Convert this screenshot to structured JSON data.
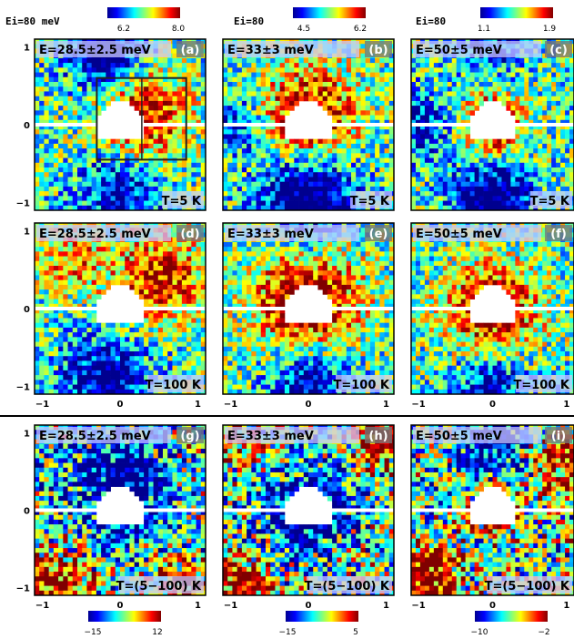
{
  "figure": {
    "header_top_left": "Ei=80 meV",
    "header_mid": "Ei=80",
    "header_right": "Ei=80",
    "colorbar_top": [
      {
        "min_label": "6.2",
        "max_label": "8.0"
      },
      {
        "min_label": "4.5",
        "max_label": "6.2"
      },
      {
        "min_label": "1.1",
        "max_label": "1.9"
      }
    ],
    "colorbar_bottom": [
      {
        "min_label": "−15",
        "max_label": "12"
      },
      {
        "min_label": "−15",
        "max_label": "5"
      },
      {
        "min_label": "−10",
        "max_label": "−2"
      }
    ]
  },
  "chart_data": [
    {
      "type": "heatmap",
      "panel": "a",
      "energy_label": "E=28.5±2.5 meV",
      "temp_label": "T=5 K",
      "tag": "(a)",
      "xlim": [
        -1.1,
        1.1
      ],
      "ylim": [
        -1.1,
        1.1
      ],
      "yticks": [
        "1",
        "0",
        "−1"
      ],
      "xticks": [],
      "cmin": 6.2,
      "cmax": 8.0,
      "hot_regions": [
        {
          "cx": 0.3,
          "cy": 0.1,
          "r": 0.55,
          "amp": 0.85
        }
      ],
      "cold_regions": [
        {
          "cx": -0.2,
          "cy": 0.9,
          "r": 0.45,
          "amp": 0.9
        },
        {
          "cx": 0.0,
          "cy": -0.9,
          "r": 0.55,
          "amp": 0.6
        }
      ],
      "box": true
    },
    {
      "type": "heatmap",
      "panel": "b",
      "energy_label": "E=33±3 meV",
      "temp_label": "T=5 K",
      "tag": "(b)",
      "xlim": [
        -1.1,
        1.1
      ],
      "ylim": [
        -1.1,
        1.1
      ],
      "yticks": [],
      "xticks": [],
      "cmin": 4.5,
      "cmax": 6.2,
      "hot_regions": [
        {
          "cx": 0.0,
          "cy": 0.1,
          "r": 0.6,
          "amp": 0.9
        }
      ],
      "cold_regions": [
        {
          "cx": 0.0,
          "cy": -1.0,
          "r": 0.6,
          "amp": 0.95
        },
        {
          "cx": -1.0,
          "cy": 0.0,
          "r": 0.4,
          "amp": 0.5
        }
      ]
    },
    {
      "type": "heatmap",
      "panel": "c",
      "energy_label": "E=50±5 meV",
      "temp_label": "T=5 K",
      "tag": "(c)",
      "xlim": [
        -1.1,
        1.1
      ],
      "ylim": [
        -1.1,
        1.1
      ],
      "yticks": [],
      "xticks": [],
      "cmin": 1.1,
      "cmax": 1.9,
      "hot_regions": [
        {
          "cx": 0.0,
          "cy": 0.0,
          "r": 0.4,
          "amp": 0.9
        }
      ],
      "cold_regions": [
        {
          "cx": 0.0,
          "cy": -1.0,
          "r": 0.5,
          "amp": 0.95
        },
        {
          "cx": -1.0,
          "cy": 0.0,
          "r": 0.45,
          "amp": 0.5
        },
        {
          "cx": 0.0,
          "cy": 1.0,
          "r": 0.45,
          "amp": 0.4
        }
      ]
    },
    {
      "type": "heatmap",
      "panel": "d",
      "energy_label": "E=28.5±2.5 meV",
      "temp_label": "T=100 K",
      "tag": "(d)",
      "xlim": [
        -1.1,
        1.1
      ],
      "ylim": [
        -1.1,
        1.1
      ],
      "yticks": [
        "1",
        "0",
        "−1"
      ],
      "xticks": [
        "−1",
        "0",
        "1"
      ],
      "cmin": 6.2,
      "cmax": 8.0,
      "hot_regions": [
        {
          "cx": 0.5,
          "cy": 0.4,
          "r": 0.55,
          "amp": 0.8
        },
        {
          "cx": -0.6,
          "cy": 0.6,
          "r": 0.4,
          "amp": 0.5
        }
      ],
      "cold_regions": [
        {
          "cx": -0.2,
          "cy": -0.9,
          "r": 0.55,
          "amp": 0.7
        }
      ]
    },
    {
      "type": "heatmap",
      "panel": "e",
      "energy_label": "E=33±3 meV",
      "temp_label": "T=100 K",
      "tag": "(e)",
      "xlim": [
        -1.1,
        1.1
      ],
      "ylim": [
        -1.1,
        1.1
      ],
      "yticks": [],
      "xticks": [
        "−1",
        "0",
        "1"
      ],
      "cmin": 4.5,
      "cmax": 6.2,
      "hot_regions": [
        {
          "cx": 0.0,
          "cy": 0.1,
          "r": 0.65,
          "amp": 1.0
        }
      ],
      "cold_regions": [
        {
          "cx": 0.0,
          "cy": -1.0,
          "r": 0.5,
          "amp": 0.7
        },
        {
          "cx": 0.0,
          "cy": 1.0,
          "r": 0.4,
          "amp": 0.4
        }
      ]
    },
    {
      "type": "heatmap",
      "panel": "f",
      "energy_label": "E=50±5 meV",
      "temp_label": "T=100 K",
      "tag": "(f)",
      "xlim": [
        -1.1,
        1.1
      ],
      "ylim": [
        -1.1,
        1.1
      ],
      "yticks": [],
      "xticks": [
        "−1",
        "0",
        "1"
      ],
      "cmin": 1.1,
      "cmax": 1.9,
      "hot_regions": [
        {
          "cx": 0.0,
          "cy": 0.0,
          "r": 0.6,
          "amp": 0.85
        }
      ],
      "cold_regions": [
        {
          "cx": 0.0,
          "cy": -1.0,
          "r": 0.45,
          "amp": 0.6
        }
      ]
    },
    {
      "type": "heatmap",
      "panel": "g",
      "energy_label": "E=28.5±2.5 meV",
      "temp_label": "T=(5−100) K",
      "tag": "(g)",
      "xlim": [
        -1.1,
        1.1
      ],
      "ylim": [
        -1.1,
        1.1
      ],
      "yticks": [
        "1",
        "0",
        "−1"
      ],
      "xticks": [
        "−1",
        "0",
        "1"
      ],
      "cmin": -15,
      "cmax": 12,
      "hot_regions": [
        {
          "cx": -0.8,
          "cy": -0.9,
          "r": 0.4,
          "amp": 0.8
        },
        {
          "cx": 0.8,
          "cy": -0.9,
          "r": 0.35,
          "amp": 0.5
        }
      ],
      "cold_regions": [
        {
          "cx": 0.0,
          "cy": 0.3,
          "r": 0.7,
          "amp": 0.7
        }
      ]
    },
    {
      "type": "heatmap",
      "panel": "h",
      "energy_label": "E=33±3 meV",
      "temp_label": "T=(5−100) K",
      "tag": "(h)",
      "xlim": [
        -1.1,
        1.1
      ],
      "ylim": [
        -1.1,
        1.1
      ],
      "yticks": [],
      "xticks": [
        "−1",
        "0",
        "1"
      ],
      "cmin": -15,
      "cmax": 5,
      "hot_regions": [
        {
          "cx": -0.9,
          "cy": -0.9,
          "r": 0.35,
          "amp": 0.8
        },
        {
          "cx": 0.9,
          "cy": 0.9,
          "r": 0.35,
          "amp": 0.8
        },
        {
          "cx": -0.9,
          "cy": 0.9,
          "r": 0.3,
          "amp": 0.5
        }
      ],
      "cold_regions": [
        {
          "cx": 0.0,
          "cy": 0.0,
          "r": 0.6,
          "amp": 0.7
        }
      ]
    },
    {
      "type": "heatmap",
      "panel": "i",
      "energy_label": "E=50±5 meV",
      "temp_label": "T=(5−100) K",
      "tag": "(i)",
      "xlim": [
        -1.1,
        1.1
      ],
      "ylim": [
        -1.1,
        1.1
      ],
      "yticks": [],
      "xticks": [
        "−1",
        "0",
        "1"
      ],
      "cmin": -10,
      "cmax": -2,
      "hot_regions": [
        {
          "cx": 0.0,
          "cy": 0.1,
          "r": 0.35,
          "amp": 0.9
        },
        {
          "cx": -0.9,
          "cy": -0.9,
          "r": 0.4,
          "amp": 0.9
        },
        {
          "cx": 0.9,
          "cy": 0.6,
          "r": 0.4,
          "amp": 0.6
        }
      ],
      "cold_regions": [
        {
          "cx": 0.0,
          "cy": 0.7,
          "r": 0.5,
          "amp": 0.6
        }
      ]
    }
  ]
}
